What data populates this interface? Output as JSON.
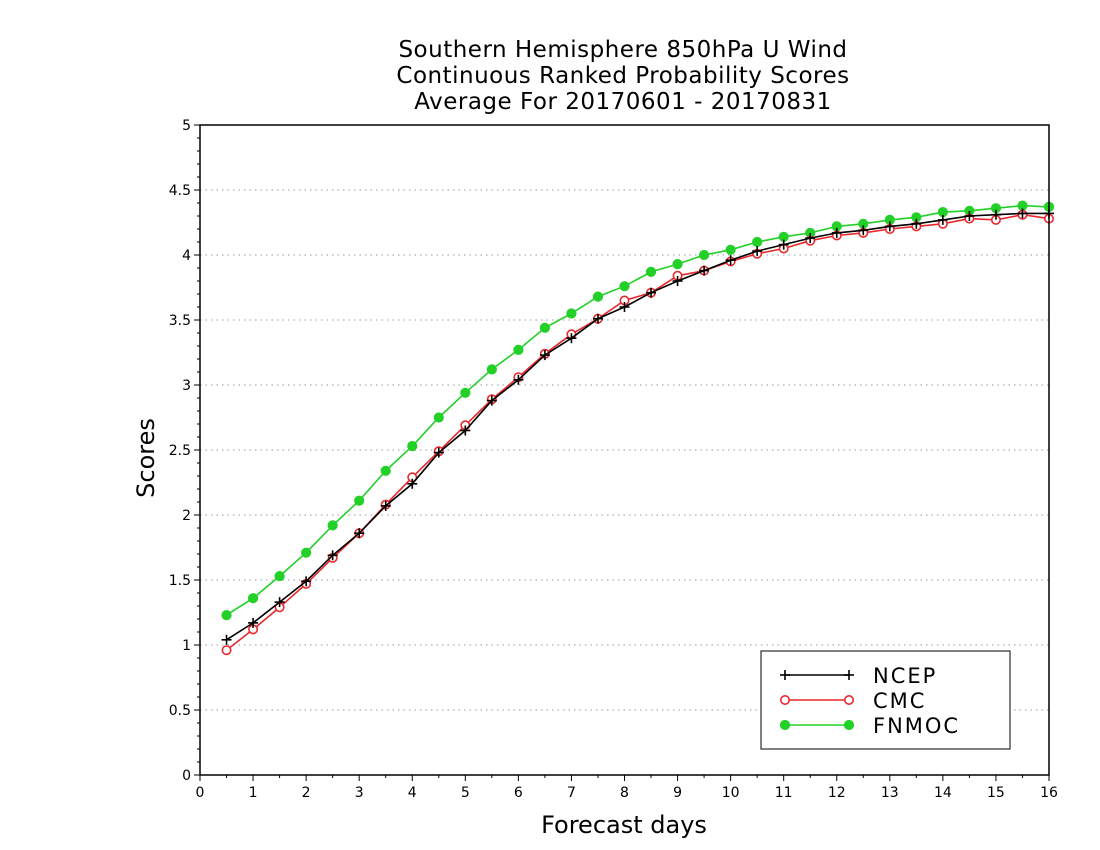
{
  "chart_data": {
    "type": "line",
    "title": [
      "Southern Hemisphere 850hPa U Wind",
      "Continuous Ranked Probability Scores",
      "Average For 20170601 - 20170831"
    ],
    "xlabel": "Forecast days",
    "ylabel": "Scores",
    "xlim": [
      0,
      16
    ],
    "ylim": [
      0,
      5
    ],
    "xticks": [
      "0",
      "1",
      "2",
      "3",
      "4",
      "5",
      "6",
      "7",
      "8",
      "9",
      "10",
      "11",
      "12",
      "13",
      "14",
      "15",
      "16"
    ],
    "yticks": [
      "0",
      "0.5",
      "1",
      "1.5",
      "2",
      "2.5",
      "3",
      "3.5",
      "4",
      "4.5",
      "5"
    ],
    "grid": "horizontal-dotted",
    "legend_position": "bottom-right",
    "x": [
      0.5,
      1,
      1.5,
      2,
      2.5,
      3,
      3.5,
      4,
      4.5,
      5,
      5.5,
      6,
      6.5,
      7,
      7.5,
      8,
      8.5,
      9,
      9.5,
      10,
      10.5,
      11,
      11.5,
      12,
      12.5,
      13,
      13.5,
      14,
      14.5,
      15,
      15.5,
      16
    ],
    "series": [
      {
        "name": "NCEP",
        "color": "#000000",
        "marker": "plus",
        "values": [
          1.04,
          1.17,
          1.33,
          1.49,
          1.69,
          1.86,
          2.07,
          2.24,
          2.48,
          2.65,
          2.88,
          3.04,
          3.23,
          3.36,
          3.51,
          3.6,
          3.71,
          3.8,
          3.88,
          3.96,
          4.03,
          4.08,
          4.13,
          4.17,
          4.19,
          4.22,
          4.24,
          4.27,
          4.3,
          4.31,
          4.32,
          4.32
        ]
      },
      {
        "name": "CMC",
        "color": "#e8282d",
        "marker": "open-circle",
        "values": [
          0.96,
          1.12,
          1.29,
          1.47,
          1.67,
          1.86,
          2.08,
          2.29,
          2.49,
          2.69,
          2.89,
          3.06,
          3.24,
          3.39,
          3.51,
          3.65,
          3.71,
          3.84,
          3.88,
          3.95,
          4.01,
          4.05,
          4.11,
          4.15,
          4.17,
          4.2,
          4.22,
          4.24,
          4.28,
          4.27,
          4.31,
          4.28
        ]
      },
      {
        "name": "FNMOC",
        "color": "#22d028",
        "marker": "filled-circle",
        "values": [
          1.23,
          1.36,
          1.53,
          1.71,
          1.92,
          2.11,
          2.34,
          2.53,
          2.75,
          2.94,
          3.12,
          3.27,
          3.44,
          3.55,
          3.68,
          3.76,
          3.87,
          3.93,
          4.0,
          4.04,
          4.1,
          4.14,
          4.17,
          4.22,
          4.24,
          4.27,
          4.29,
          4.33,
          4.34,
          4.36,
          4.38,
          4.37
        ]
      }
    ]
  }
}
